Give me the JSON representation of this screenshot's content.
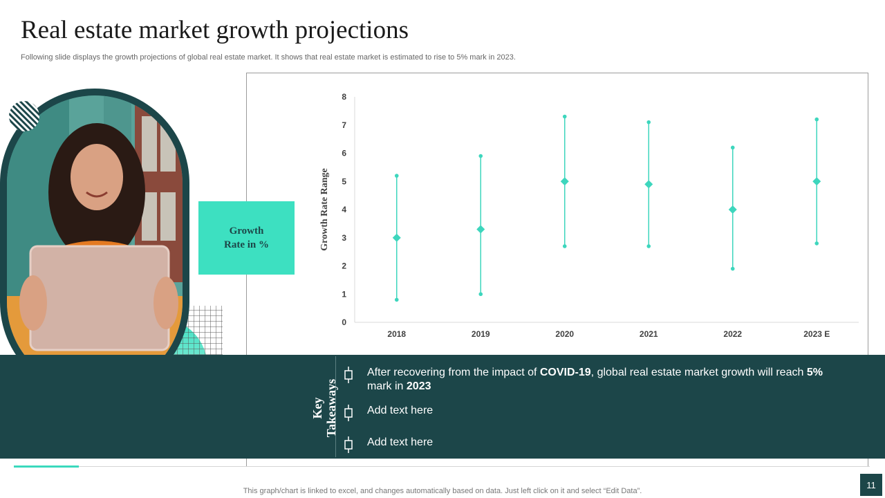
{
  "header": {
    "title": "Real estate market growth projections",
    "subtitle": "Following slide displays the growth projections of global real estate market. It shows that real estate market is estimated to rise to 5% mark in 2023."
  },
  "label_box": {
    "text": "Growth\nRate in %"
  },
  "key_takeaways": {
    "label": "Key\nTakeaways",
    "items": [
      {
        "parts": [
          {
            "text": "After recovering from the impact of ",
            "bold": false
          },
          {
            "text": "COVID-19",
            "bold": true
          },
          {
            "text": ", global real estate market growth will reach ",
            "bold": false
          },
          {
            "text": "5%",
            "bold": true
          },
          {
            "text": " mark in ",
            "bold": false
          },
          {
            "text": "2023",
            "bold": true
          }
        ]
      },
      {
        "parts": [
          {
            "text": "Add text here",
            "bold": false
          }
        ]
      },
      {
        "parts": [
          {
            "text": "Add text here",
            "bold": false
          }
        ]
      }
    ]
  },
  "footer": {
    "note": "This graph/chart is linked to excel,  and changes automatically based on data. Just left click on it and select “Edit Data”.",
    "page_number": "11"
  },
  "icons": {
    "bullet": "bullet-bracket-icon",
    "hatched_circle": "hatched-circle-decoration",
    "grid": "grid-decoration",
    "photo": "woman-with-laptop-photo"
  },
  "colors": {
    "accent": "#3de0c1",
    "dark_teal": "#1c4649",
    "series": "#3dd6bd"
  },
  "chart_data": {
    "type": "scatter",
    "subtype": "high-low-marker",
    "title": "",
    "xlabel": "",
    "ylabel": "Growth  Rate Range",
    "categories": [
      "2018",
      "2019",
      "2020",
      "2021",
      "2022",
      "2023 E"
    ],
    "series": [
      {
        "role": "high",
        "values": [
          5.2,
          5.9,
          7.3,
          7.1,
          6.2,
          7.2
        ]
      },
      {
        "role": "low",
        "values": [
          0.8,
          1.0,
          2.7,
          2.7,
          1.9,
          2.8
        ]
      },
      {
        "role": "marker",
        "values": [
          3.0,
          3.3,
          5.0,
          4.9,
          4.0,
          5.0
        ]
      }
    ],
    "ylim": [
      0,
      8
    ],
    "yticks": [
      0,
      1,
      2,
      3,
      4,
      5,
      6,
      7,
      8
    ],
    "grid": false,
    "legend": "none"
  }
}
